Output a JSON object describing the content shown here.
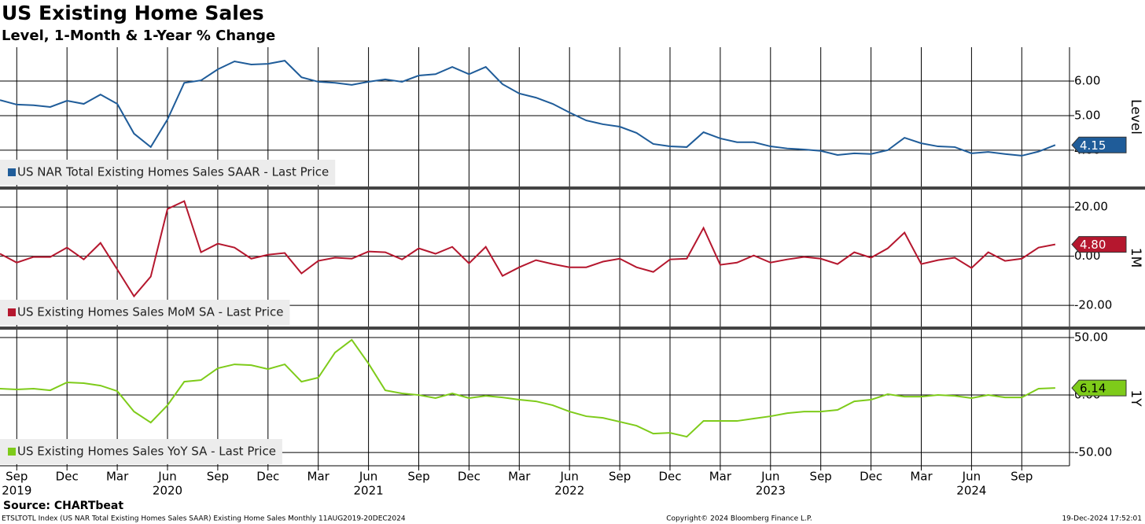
{
  "title": "US Existing Home Sales",
  "subtitle": "Level, 1-Month & 1-Year % Change",
  "x": [
    "2019-08",
    "2019-09",
    "2019-10",
    "2019-11",
    "2019-12",
    "2020-01",
    "2020-02",
    "2020-03",
    "2020-04",
    "2020-05",
    "2020-06",
    "2020-07",
    "2020-08",
    "2020-09",
    "2020-10",
    "2020-11",
    "2020-12",
    "2021-01",
    "2021-02",
    "2021-03",
    "2021-04",
    "2021-05",
    "2021-06",
    "2021-07",
    "2021-08",
    "2021-09",
    "2021-10",
    "2021-11",
    "2021-12",
    "2022-01",
    "2022-02",
    "2022-03",
    "2022-04",
    "2022-05",
    "2022-06",
    "2022-07",
    "2022-08",
    "2022-09",
    "2022-10",
    "2022-11",
    "2022-12",
    "2023-01",
    "2023-02",
    "2023-03",
    "2023-04",
    "2023-05",
    "2023-06",
    "2023-07",
    "2023-08",
    "2023-09",
    "2023-10",
    "2023-11",
    "2023-12",
    "2024-01",
    "2024-02",
    "2024-03",
    "2024-04",
    "2024-05",
    "2024-06",
    "2024-07",
    "2024-08",
    "2024-09",
    "2024-10",
    "2024-11"
  ],
  "xticks": [
    {
      "value": "2019-09",
      "label": "Sep"
    },
    {
      "value": "2019-12",
      "label": "Dec"
    },
    {
      "value": "2020-03",
      "label": "Mar"
    },
    {
      "value": "2020-06",
      "label": "Jun"
    },
    {
      "value": "2020-09",
      "label": "Sep"
    },
    {
      "value": "2020-12",
      "label": "Dec"
    },
    {
      "value": "2021-03",
      "label": "Mar"
    },
    {
      "value": "2021-06",
      "label": "Jun"
    },
    {
      "value": "2021-09",
      "label": "Sep"
    },
    {
      "value": "2021-12",
      "label": "Dec"
    },
    {
      "value": "2022-03",
      "label": "Mar"
    },
    {
      "value": "2022-06",
      "label": "Jun"
    },
    {
      "value": "2022-09",
      "label": "Sep"
    },
    {
      "value": "2022-12",
      "label": "Dec"
    },
    {
      "value": "2023-03",
      "label": "Mar"
    },
    {
      "value": "2023-06",
      "label": "Jun"
    },
    {
      "value": "2023-09",
      "label": "Sep"
    },
    {
      "value": "2023-12",
      "label": "Dec"
    },
    {
      "value": "2024-03",
      "label": "Mar"
    },
    {
      "value": "2024-06",
      "label": "Jun"
    },
    {
      "value": "2024-09",
      "label": "Sep"
    }
  ],
  "years": [
    {
      "value": "2019-09",
      "label": "2019"
    },
    {
      "value": "2020-06",
      "label": "2020"
    },
    {
      "value": "2021-06",
      "label": "2021"
    },
    {
      "value": "2022-06",
      "label": "2022"
    },
    {
      "value": "2023-06",
      "label": "2023"
    },
    {
      "value": "2024-06",
      "label": "2024"
    }
  ],
  "chart_data": [
    {
      "type": "line",
      "axis_title": "Level",
      "ylim": [
        2.95,
        6.98
      ],
      "yticks": [
        {
          "value": 4,
          "label": "4.00"
        },
        {
          "value": 5,
          "label": "5.00"
        },
        {
          "value": 6,
          "label": "6.00"
        }
      ],
      "series": [
        {
          "name": "US NAR Total Existing Homes Sales SAAR - Last Price",
          "color": "#1f5c99",
          "values": [
            5.45,
            5.32,
            5.3,
            5.25,
            5.43,
            5.34,
            5.61,
            5.34,
            4.48,
            4.09,
            4.89,
            5.95,
            6.02,
            6.34,
            6.57,
            6.48,
            6.5,
            6.59,
            6.11,
            5.98,
            5.95,
            5.89,
            5.98,
            6.05,
            5.98,
            6.16,
            6.2,
            6.41,
            6.2,
            6.41,
            5.91,
            5.64,
            5.52,
            5.34,
            5.09,
            4.86,
            4.75,
            4.68,
            4.5,
            4.18,
            4.11,
            4.09,
            4.52,
            4.34,
            4.23,
            4.23,
            4.11,
            4.05,
            4.02,
            3.98,
            3.86,
            3.91,
            3.89,
            4.0,
            4.36,
            4.2,
            4.11,
            4.09,
            3.91,
            3.95,
            3.89,
            3.84,
            3.96,
            4.15
          ]
        }
      ]
    },
    {
      "type": "line",
      "axis_title": "1M",
      "ylim": [
        -28.6,
        27.4
      ],
      "yticks": [
        {
          "value": -20,
          "label": "-20.00"
        },
        {
          "value": 0,
          "label": "0.00"
        },
        {
          "value": 20,
          "label": "20.00"
        }
      ],
      "series": [
        {
          "name": "US Existing Homes Sales MoM SA - Last Price",
          "color": "#b5172e",
          "values": [
            1,
            -2.6,
            -0.3,
            -0.3,
            3.5,
            -1.3,
            5.4,
            -5.4,
            -16.3,
            -8.3,
            19.2,
            22.4,
            1.6,
            5.1,
            3.5,
            -1.0,
            0.6,
            1.3,
            -7.0,
            -1.9,
            -0.6,
            -1.0,
            1.9,
            1.6,
            -1.3,
            3.2,
            1.0,
            3.8,
            -2.9,
            3.8,
            -8.0,
            -4.5,
            -1.6,
            -3.2,
            -4.5,
            -4.5,
            -2.2,
            -1.0,
            -4.5,
            -6.4,
            -1.3,
            -1.0,
            11.5,
            -3.5,
            -2.6,
            0.3,
            -2.6,
            -1.3,
            -0.3,
            -1.0,
            -3.2,
            1.6,
            -0.6,
            3.2,
            9.6,
            -3.2,
            -1.6,
            -0.6,
            -4.8,
            1.6,
            -1.9,
            -1.0,
            3.5,
            4.8
          ],
          "value_labels": [
            null,
            null,
            null,
            null,
            null,
            null,
            null,
            null,
            null,
            null,
            null,
            null,
            null,
            null,
            null,
            null,
            null,
            null,
            null,
            null,
            null,
            null,
            null,
            null,
            null,
            null,
            null,
            null,
            null,
            null,
            null,
            null,
            null,
            null,
            null,
            null,
            null,
            null,
            null,
            null,
            null,
            null,
            null,
            null,
            null,
            null,
            null,
            null,
            null,
            null,
            null,
            null,
            null,
            null,
            null,
            null,
            null,
            null,
            null,
            null,
            null,
            null,
            null,
            "4.80"
          ]
        }
      ]
    },
    {
      "type": "line",
      "axis_title": "1Y",
      "ylim": [
        -61.6,
        56.2
      ],
      "yticks": [
        {
          "value": -50,
          "label": "-50.00"
        },
        {
          "value": 0,
          "label": "0.00"
        },
        {
          "value": 50,
          "label": "50.00"
        }
      ],
      "series": [
        {
          "name": "US Existing Homes Sales YoY SA - Last Price",
          "color": "#7ecb1a",
          "values": [
            5.5,
            4.8,
            5.5,
            4.1,
            11.0,
            10.3,
            8.2,
            3.4,
            -14.4,
            -24.0,
            -8.9,
            11.6,
            13.0,
            23.3,
            26.7,
            26.0,
            22.6,
            26.7,
            11.6,
            15.1,
            37.0,
            48.0,
            27.4,
            4.1,
            1.4,
            0,
            -2.7,
            1.4,
            -2.7,
            -0.7,
            -2.1,
            -4.1,
            -5.5,
            -8.9,
            -14.4,
            -18.5,
            -19.9,
            -23.3,
            -26.7,
            -33.6,
            -32.9,
            -36.3,
            -22.6,
            -22.6,
            -22.6,
            -20.5,
            -18.5,
            -15.8,
            -14.4,
            -14.4,
            -13.0,
            -5.5,
            -4.1,
            0.7,
            -1.4,
            -1.4,
            0,
            -0.7,
            -2.7,
            0,
            -2.1,
            -2.1,
            5.5,
            6.14
          ]
        }
      ]
    }
  ],
  "source": "Source: CHARTbeat",
  "footer": {
    "left": "ETSLTOTL Index (US NAR Total Existing Homes Sales SAAR) Existing Home Sales  Monthly 11AUG2019-20DEC2024",
    "center": "Copyright© 2024 Bloomberg Finance L.P.",
    "right": "19-Dec-2024 17:52:01"
  }
}
